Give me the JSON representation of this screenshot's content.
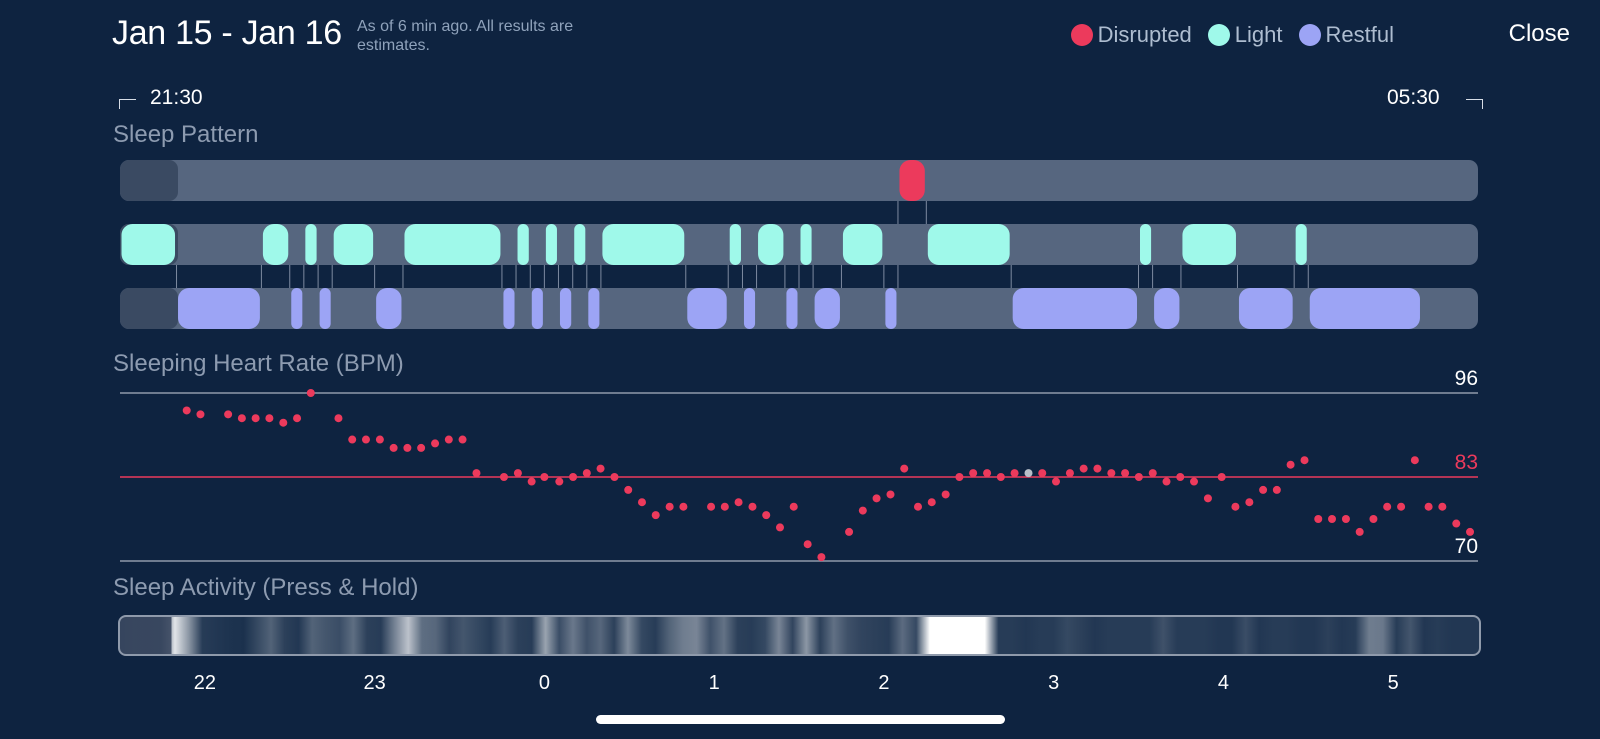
{
  "header": {
    "date_range": "Jan 15 - Jan 16",
    "updated_note": "As of 6 min ago. All results are estimates.",
    "close_label": "Close"
  },
  "legend": [
    {
      "label": "Disrupted",
      "color": "#ec3a5c"
    },
    {
      "label": "Light",
      "color": "#9ff9ea"
    },
    {
      "label": "Restful",
      "color": "#9ca4f5"
    }
  ],
  "timeline": {
    "start": "21:30",
    "end": "05:30"
  },
  "sleep_pattern": {
    "title": "Sleep Pattern",
    "track_color": "#56667f",
    "lead_color": "#3a4a62",
    "start_hour": 21.5,
    "end_hour": 29.5,
    "stages": [
      "Disrupted",
      "Light",
      "Restful"
    ],
    "segments": [
      {
        "stage": "Restful",
        "start": 21.833,
        "end": 22.333
      },
      {
        "stage": "Light",
        "start": 21.5,
        "end": 21.833
      },
      {
        "stage": "Light",
        "start": 22.333,
        "end": 22.5
      },
      {
        "stage": "Restful",
        "start": 22.5,
        "end": 22.583
      },
      {
        "stage": "Light",
        "start": 22.583,
        "end": 22.667
      },
      {
        "stage": "Restful",
        "start": 22.667,
        "end": 22.75
      },
      {
        "stage": "Light",
        "start": 22.75,
        "end": 23.0
      },
      {
        "stage": "Restful",
        "start": 23.0,
        "end": 23.167
      },
      {
        "stage": "Light",
        "start": 23.167,
        "end": 23.75
      },
      {
        "stage": "Restful",
        "start": 23.75,
        "end": 23.833
      },
      {
        "stage": "Light",
        "start": 23.833,
        "end": 23.917
      },
      {
        "stage": "Restful",
        "start": 23.917,
        "end": 24.0
      },
      {
        "stage": "Light",
        "start": 24.0,
        "end": 24.083
      },
      {
        "stage": "Restful",
        "start": 24.083,
        "end": 24.167
      },
      {
        "stage": "Light",
        "start": 24.167,
        "end": 24.25
      },
      {
        "stage": "Restful",
        "start": 24.25,
        "end": 24.333
      },
      {
        "stage": "Light",
        "start": 24.333,
        "end": 24.833
      },
      {
        "stage": "Restful",
        "start": 24.833,
        "end": 25.083
      },
      {
        "stage": "Light",
        "start": 25.083,
        "end": 25.167
      },
      {
        "stage": "Restful",
        "start": 25.167,
        "end": 25.25
      },
      {
        "stage": "Light",
        "start": 25.25,
        "end": 25.417
      },
      {
        "stage": "Restful",
        "start": 25.417,
        "end": 25.5
      },
      {
        "stage": "Light",
        "start": 25.5,
        "end": 25.583
      },
      {
        "stage": "Restful",
        "start": 25.583,
        "end": 25.75
      },
      {
        "stage": "Light",
        "start": 25.75,
        "end": 26.0
      },
      {
        "stage": "Restful",
        "start": 26.0,
        "end": 26.083
      },
      {
        "stage": "Disrupted",
        "start": 26.083,
        "end": 26.25
      },
      {
        "stage": "Light",
        "start": 26.25,
        "end": 26.75
      },
      {
        "stage": "Restful",
        "start": 26.75,
        "end": 27.5
      },
      {
        "stage": "Light",
        "start": 27.5,
        "end": 27.583
      },
      {
        "stage": "Restful",
        "start": 27.583,
        "end": 27.75
      },
      {
        "stage": "Light",
        "start": 27.75,
        "end": 28.083
      },
      {
        "stage": "Restful",
        "start": 28.083,
        "end": 28.417
      },
      {
        "stage": "Light",
        "start": 28.417,
        "end": 28.5
      },
      {
        "stage": "Restful",
        "start": 28.5,
        "end": 29.167
      }
    ]
  },
  "chart_data": {
    "type": "scatter",
    "title": "Sleeping Heart Rate (BPM)",
    "x_unit": "hour",
    "xlim": [
      21.5,
      29.5
    ],
    "ylim": [
      70,
      96
    ],
    "reference_lines": [
      {
        "value": 96,
        "label": "96",
        "color": "#8f9aab"
      },
      {
        "value": 83,
        "label": "83",
        "color": "#ec3a5c"
      },
      {
        "value": 70,
        "label": "70",
        "color": "#8f9aab"
      }
    ],
    "x_ticks": [
      {
        "value": 22,
        "label": "22"
      },
      {
        "value": 23,
        "label": "23"
      },
      {
        "value": 24,
        "label": "0"
      },
      {
        "value": 25,
        "label": "1"
      },
      {
        "value": 26,
        "label": "2"
      },
      {
        "value": 27,
        "label": "3"
      },
      {
        "value": 28,
        "label": "4"
      },
      {
        "value": 29,
        "label": "5"
      }
    ],
    "point_color": "#ec3a5c",
    "highlight_color": "#b8bfc9",
    "highlight_index": 56,
    "series": [
      {
        "x": [
          21.893,
          21.974,
          22.137,
          22.218,
          22.299,
          22.38,
          22.462,
          22.543,
          22.624,
          22.787,
          22.868,
          22.949,
          23.031,
          23.112,
          23.193,
          23.274,
          23.356,
          23.437,
          23.518,
          23.6,
          23.762,
          23.844,
          23.925,
          24.0,
          24.088,
          24.169,
          24.25,
          24.331,
          24.413,
          24.494,
          24.575,
          24.656,
          24.738,
          24.819,
          24.982,
          25.063,
          25.144,
          25.226,
          25.307,
          25.388,
          25.469,
          25.551,
          25.632,
          25.795,
          25.876,
          25.957,
          26.039,
          26.12,
          26.201,
          26.282,
          26.364,
          26.445,
          26.526,
          26.608,
          26.689,
          26.77,
          26.852,
          26.933,
          27.014,
          27.096,
          27.177,
          27.258,
          27.34,
          27.421,
          27.502,
          27.584,
          27.665,
          27.746,
          27.827,
          27.909,
          27.99,
          28.071,
          28.153,
          28.234,
          28.315,
          28.396,
          28.478,
          28.559,
          28.64,
          28.722,
          28.803,
          28.884,
          28.965,
          29.047,
          29.128,
          29.209,
          29.29,
          29.372,
          29.453
        ],
        "y": [
          93.3,
          92.7,
          92.7,
          92.1,
          92.1,
          92.1,
          91.4,
          92.1,
          96.0,
          92.1,
          88.8,
          88.8,
          88.8,
          87.5,
          87.5,
          87.5,
          88.2,
          88.8,
          88.8,
          83.6,
          83.0,
          83.6,
          82.3,
          83.0,
          82.3,
          83.0,
          83.6,
          84.3,
          83.0,
          81.0,
          79.1,
          77.1,
          78.4,
          78.4,
          78.4,
          78.4,
          79.1,
          78.4,
          77.1,
          75.2,
          78.4,
          72.6,
          70.6,
          74.5,
          77.8,
          79.7,
          80.3,
          84.3,
          78.4,
          79.1,
          80.3,
          83.0,
          83.6,
          83.6,
          83.0,
          83.6,
          83.6,
          83.6,
          82.3,
          83.6,
          84.3,
          84.3,
          83.6,
          83.6,
          83.0,
          83.6,
          82.3,
          83.0,
          82.3,
          79.7,
          83.0,
          78.4,
          79.1,
          81.0,
          81.0,
          84.9,
          85.6,
          76.5,
          76.5,
          76.5,
          74.5,
          76.5,
          78.4,
          78.4,
          85.6,
          78.4,
          78.4,
          75.8,
          74.5
        ]
      }
    ]
  },
  "activity": {
    "title": "Sleep Activity (Press & Hold)",
    "intensity": [
      0.0,
      0.1,
      0.08,
      0.12,
      0.88,
      0.52,
      0.1,
      0.08,
      0.06,
      0.05,
      0.16,
      0.28,
      0.12,
      0.08,
      0.28,
      0.22,
      0.18,
      0.33,
      0.12,
      0.1,
      0.42,
      0.72,
      0.33,
      0.3,
      0.14,
      0.22,
      0.16,
      0.1,
      0.26,
      0.12,
      0.1,
      0.58,
      0.18,
      0.38,
      0.2,
      0.3,
      0.12,
      0.46,
      0.16,
      0.1,
      0.28,
      0.4,
      0.44,
      0.2,
      0.35,
      0.12,
      0.1,
      0.16,
      0.44,
      0.14,
      0.52,
      0.12,
      0.34,
      0.2,
      0.14,
      0.12,
      0.1,
      0.32,
      0.16,
      0.1,
      0.48,
      0.16,
      0.3,
      0.22,
      0.1,
      0.1,
      0.08,
      0.1,
      0.1,
      0.16,
      0.12,
      0.08,
      0.1,
      0.1,
      0.1,
      0.1,
      0.2,
      0.1,
      0.1,
      0.1,
      0.08,
      0.08,
      0.18,
      0.08,
      0.1,
      0.1,
      0.08,
      0.08,
      0.12,
      0.08,
      0.1,
      0.4,
      0.38,
      0.1,
      0.22,
      0.08,
      0.1,
      0.08,
      0.08,
      0.08
    ],
    "highlights": [
      {
        "start": 26.25,
        "end": 26.6,
        "intensity": 1.0
      }
    ]
  },
  "home_indicator": true
}
